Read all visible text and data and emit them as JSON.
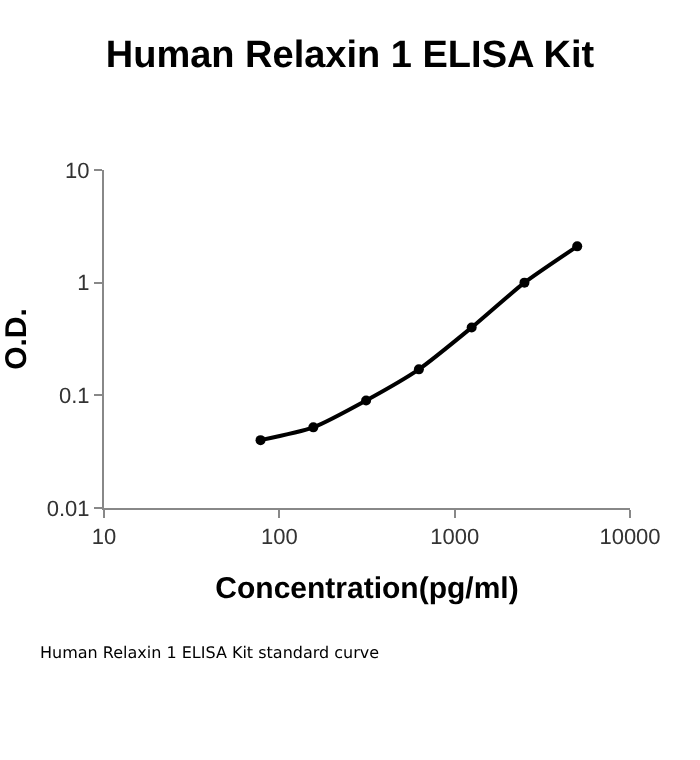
{
  "chart_data": {
    "type": "line",
    "title": "Human Relaxin 1 ELISA Kit",
    "xlabel": "Concentration(pg/ml)",
    "ylabel": "O.D.",
    "x": [
      78.125,
      156.25,
      312.5,
      625,
      1250,
      2500,
      5000
    ],
    "series": [
      {
        "color": "#000000",
        "values": [
          0.04,
          0.052,
          0.09,
          0.17,
          0.4,
          1.0,
          2.1
        ]
      }
    ],
    "log": "xy",
    "xlim": [
      10,
      10000
    ],
    "xticks": [
      10,
      100,
      1000,
      10000
    ],
    "ylim": [
      0.01,
      10
    ],
    "yticks": [
      0.01,
      0.1,
      1,
      10
    ],
    "marker": "circle",
    "line_style": "solid",
    "annotations": [
      "Human Relaxin 1 ELISA Kit standard curve"
    ]
  }
}
